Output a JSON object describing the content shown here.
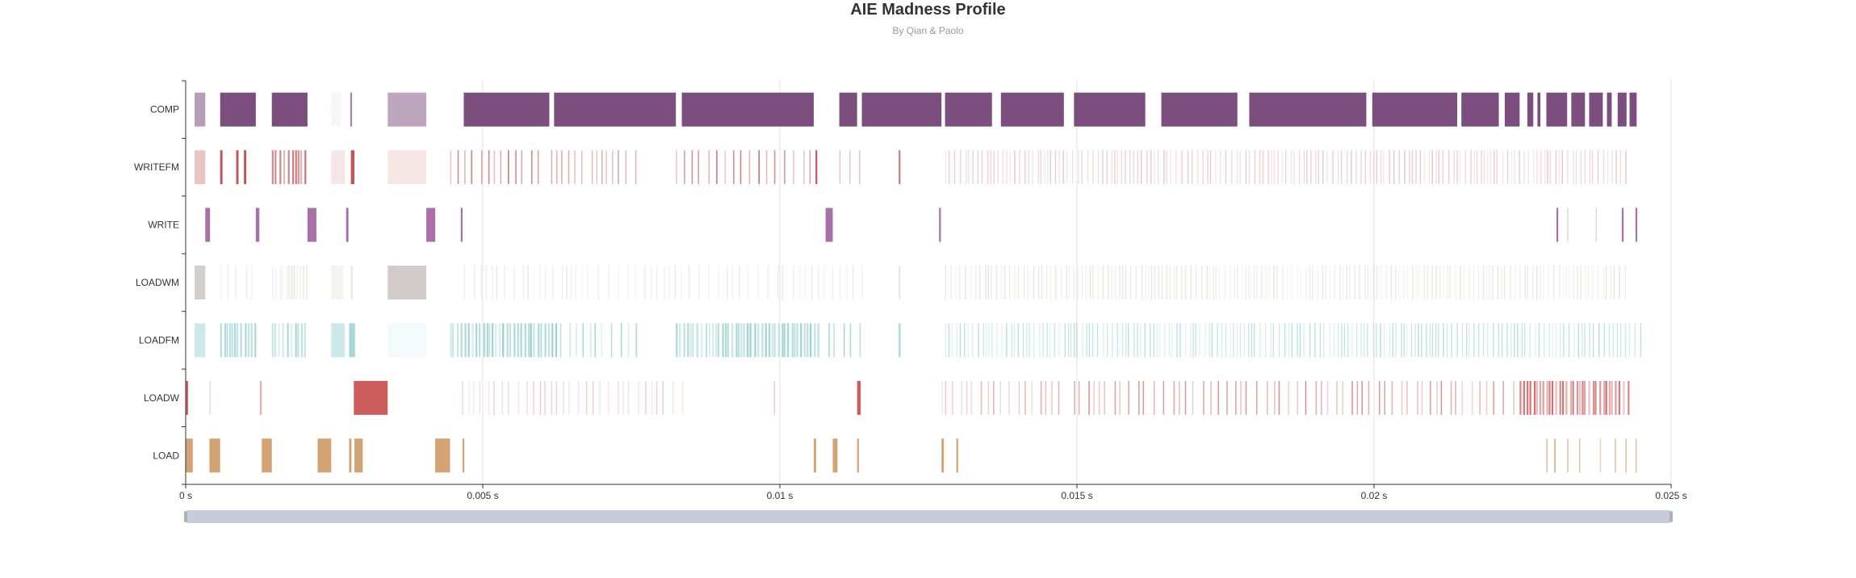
{
  "chart_data": {
    "type": "timeline",
    "title": "AIE Madness Profile",
    "subtitle": "By Qian & Paolo",
    "xlim": [
      0,
      0.025
    ],
    "x_ticks": [
      0,
      0.005,
      0.01,
      0.015,
      0.02,
      0.025
    ],
    "x_tick_labels": [
      "0 s",
      "0.005 s",
      "0.01 s",
      "0.015 s",
      "0.02 s",
      "0.025 s"
    ],
    "categories": [
      "COMP",
      "WRITEFM",
      "WRITE",
      "LOADWM",
      "LOADFM",
      "LOADW",
      "LOAD"
    ],
    "series": [
      {
        "category": "COMP",
        "color": "#7b4e7e",
        "events": [
          {
            "start": 0.00015,
            "end": 0.00033,
            "opacity": 0.55
          },
          {
            "start": 0.00058,
            "end": 0.00118,
            "opacity": 1
          },
          {
            "start": 0.00145,
            "end": 0.00205,
            "opacity": 1
          },
          {
            "start": 0.00245,
            "end": 0.00262,
            "opacity": 0.05
          },
          {
            "start": 0.00277,
            "end": 0.0028,
            "opacity": 0.7
          },
          {
            "start": 0.0034,
            "end": 0.00405,
            "opacity": 0.5
          },
          {
            "start": 0.00468,
            "end": 0.00612,
            "opacity": 1
          },
          {
            "start": 0.0062,
            "end": 0.00825,
            "opacity": 1
          },
          {
            "start": 0.00835,
            "end": 0.01057,
            "opacity": 1
          },
          {
            "start": 0.011,
            "end": 0.0113,
            "opacity": 1
          },
          {
            "start": 0.01138,
            "end": 0.01272,
            "opacity": 1
          },
          {
            "start": 0.01278,
            "end": 0.01357,
            "opacity": 1
          },
          {
            "start": 0.01372,
            "end": 0.01478,
            "opacity": 1
          },
          {
            "start": 0.01495,
            "end": 0.01615,
            "opacity": 1
          },
          {
            "start": 0.01642,
            "end": 0.0177,
            "opacity": 1
          },
          {
            "start": 0.0179,
            "end": 0.01987,
            "opacity": 1
          },
          {
            "start": 0.01997,
            "end": 0.0214,
            "opacity": 1
          },
          {
            "start": 0.02147,
            "end": 0.0221,
            "opacity": 1
          },
          {
            "start": 0.0222,
            "end": 0.02245,
            "opacity": 1
          },
          {
            "start": 0.02258,
            "end": 0.02268,
            "opacity": 1
          },
          {
            "start": 0.02275,
            "end": 0.0228,
            "opacity": 1
          },
          {
            "start": 0.0229,
            "end": 0.02325,
            "opacity": 1
          },
          {
            "start": 0.02332,
            "end": 0.02355,
            "opacity": 1
          },
          {
            "start": 0.02362,
            "end": 0.02385,
            "opacity": 1
          },
          {
            "start": 0.02392,
            "end": 0.024,
            "opacity": 1
          },
          {
            "start": 0.0241,
            "end": 0.02425,
            "opacity": 1
          },
          {
            "start": 0.0243,
            "end": 0.02442,
            "opacity": 1
          }
        ]
      },
      {
        "category": "WRITEFM",
        "color": "#c0565a",
        "events": [
          {
            "start": 0.00015,
            "end": 0.00033,
            "opacity": 0.35
          },
          {
            "start": 0.00058,
            "end": 0.00062,
            "opacity": 1
          },
          {
            "start": 0.00085,
            "end": 0.00089,
            "opacity": 1
          },
          {
            "start": 0.00098,
            "end": 0.00102,
            "opacity": 1
          },
          {
            "start": 0.00145,
            "end": 0.00205,
            "opacity": 0.9,
            "pattern": "stripes"
          },
          {
            "start": 0.00245,
            "end": 0.00268,
            "opacity": 0.15
          },
          {
            "start": 0.00278,
            "end": 0.00284,
            "opacity": 1
          },
          {
            "start": 0.0034,
            "end": 0.00405,
            "opacity": 0.15
          },
          {
            "start": 0.00445,
            "end": 0.00605,
            "opacity": 0.8,
            "pattern": "sparse"
          },
          {
            "start": 0.00615,
            "end": 0.0076,
            "opacity": 0.6,
            "pattern": "sparse"
          },
          {
            "start": 0.00825,
            "end": 0.01057,
            "opacity": 0.85,
            "pattern": "sparse"
          },
          {
            "start": 0.0106,
            "end": 0.01063,
            "opacity": 1
          },
          {
            "start": 0.011,
            "end": 0.0114,
            "opacity": 0.6,
            "pattern": "sparse"
          },
          {
            "start": 0.012,
            "end": 0.01203,
            "opacity": 0.8
          },
          {
            "start": 0.01278,
            "end": 0.0243,
            "opacity": 0.35,
            "pattern": "dense"
          }
        ]
      },
      {
        "category": "WRITE",
        "color": "#a96fa8",
        "events": [
          {
            "start": 0.00033,
            "end": 0.00041,
            "opacity": 1
          },
          {
            "start": 0.00118,
            "end": 0.00124,
            "opacity": 1
          },
          {
            "start": 0.00205,
            "end": 0.0022,
            "opacity": 1
          },
          {
            "start": 0.0027,
            "end": 0.00274,
            "opacity": 1
          },
          {
            "start": 0.00405,
            "end": 0.0042,
            "opacity": 1
          },
          {
            "start": 0.00463,
            "end": 0.00466,
            "opacity": 1
          },
          {
            "start": 0.01077,
            "end": 0.01089,
            "opacity": 1
          },
          {
            "start": 0.01268,
            "end": 0.01271,
            "opacity": 1
          },
          {
            "start": 0.02307,
            "end": 0.0231,
            "opacity": 1
          },
          {
            "start": 0.02325,
            "end": 0.02327,
            "opacity": 0.3
          },
          {
            "start": 0.02373,
            "end": 0.02375,
            "opacity": 0.3
          },
          {
            "start": 0.02417,
            "end": 0.0242,
            "opacity": 1
          },
          {
            "start": 0.0244,
            "end": 0.02443,
            "opacity": 1
          }
        ]
      },
      {
        "category": "LOADWM",
        "color": "#c9c3c0",
        "events": [
          {
            "start": 0.00015,
            "end": 0.00033,
            "opacity": 0.8
          },
          {
            "start": 0.00058,
            "end": 0.0012,
            "opacity": 0.3,
            "pattern": "sparse"
          },
          {
            "start": 0.00145,
            "end": 0.00205,
            "opacity": 0.35,
            "pattern": "stripes"
          },
          {
            "start": 0.00245,
            "end": 0.00265,
            "opacity": 0.2
          },
          {
            "start": 0.00278,
            "end": 0.00281,
            "opacity": 0.4
          },
          {
            "start": 0.0034,
            "end": 0.00405,
            "opacity": 0.85
          },
          {
            "start": 0.00468,
            "end": 0.0114,
            "opacity": 0.35,
            "pattern": "sparse"
          },
          {
            "start": 0.012,
            "end": 0.01203,
            "opacity": 0.4
          },
          {
            "start": 0.01278,
            "end": 0.0243,
            "opacity": 0.45,
            "pattern": "dense"
          }
        ]
      },
      {
        "category": "LOADFM",
        "color": "#6cbcbc",
        "events": [
          {
            "start": 0.00015,
            "end": 0.00033,
            "opacity": 0.35
          },
          {
            "start": 0.00058,
            "end": 0.0012,
            "opacity": 0.6,
            "pattern": "stripes"
          },
          {
            "start": 0.00145,
            "end": 0.00205,
            "opacity": 0.6,
            "pattern": "stripes"
          },
          {
            "start": 0.00245,
            "end": 0.00268,
            "opacity": 0.35
          },
          {
            "start": 0.00275,
            "end": 0.00285,
            "opacity": 0.6
          },
          {
            "start": 0.0034,
            "end": 0.00405,
            "opacity": 0.08
          },
          {
            "start": 0.00445,
            "end": 0.00625,
            "opacity": 0.75,
            "pattern": "stripes"
          },
          {
            "start": 0.0063,
            "end": 0.00765,
            "opacity": 0.6,
            "pattern": "sparse"
          },
          {
            "start": 0.00825,
            "end": 0.01065,
            "opacity": 0.7,
            "pattern": "stripes"
          },
          {
            "start": 0.01065,
            "end": 0.0114,
            "opacity": 0.6,
            "pattern": "sparse"
          },
          {
            "start": 0.012,
            "end": 0.01203,
            "opacity": 0.6
          },
          {
            "start": 0.01278,
            "end": 0.0245,
            "opacity": 0.5,
            "pattern": "dense"
          }
        ]
      },
      {
        "category": "LOADW",
        "color": "#cd5c5c",
        "events": [
          {
            "start": 0.0,
            "end": 4e-05,
            "opacity": 1
          },
          {
            "start": 0.0004,
            "end": 0.00042,
            "opacity": 0.25
          },
          {
            "start": 0.00125,
            "end": 0.00128,
            "opacity": 0.5
          },
          {
            "start": 0.00283,
            "end": 0.0034,
            "opacity": 1
          },
          {
            "start": 0.00465,
            "end": 0.00845,
            "opacity": 0.3,
            "pattern": "sparse"
          },
          {
            "start": 0.0099,
            "end": 0.00992,
            "opacity": 0.3
          },
          {
            "start": 0.0113,
            "end": 0.01136,
            "opacity": 1
          },
          {
            "start": 0.01272,
            "end": 0.01274,
            "opacity": 0.15
          },
          {
            "start": 0.01278,
            "end": 0.0147,
            "opacity": 0.5,
            "pattern": "sparse"
          },
          {
            "start": 0.01495,
            "end": 0.02245,
            "opacity": 0.7,
            "pattern": "sparse"
          },
          {
            "start": 0.02245,
            "end": 0.0243,
            "opacity": 0.9,
            "pattern": "stripes"
          }
        ]
      },
      {
        "category": "LOAD",
        "color": "#d4a373",
        "events": [
          {
            "start": 0.0,
            "end": 0.00012,
            "opacity": 1
          },
          {
            "start": 0.0004,
            "end": 0.00058,
            "opacity": 1
          },
          {
            "start": 0.00128,
            "end": 0.00145,
            "opacity": 1
          },
          {
            "start": 0.00222,
            "end": 0.00245,
            "opacity": 1
          },
          {
            "start": 0.00275,
            "end": 0.00279,
            "opacity": 1
          },
          {
            "start": 0.00284,
            "end": 0.00298,
            "opacity": 1
          },
          {
            "start": 0.0042,
            "end": 0.00445,
            "opacity": 1
          },
          {
            "start": 0.00466,
            "end": 0.00469,
            "opacity": 1
          },
          {
            "start": 0.01057,
            "end": 0.01061,
            "opacity": 1
          },
          {
            "start": 0.01089,
            "end": 0.01097,
            "opacity": 1
          },
          {
            "start": 0.0113,
            "end": 0.01133,
            "opacity": 1
          },
          {
            "start": 0.01272,
            "end": 0.01276,
            "opacity": 1
          },
          {
            "start": 0.01297,
            "end": 0.013,
            "opacity": 1
          },
          {
            "start": 0.0229,
            "end": 0.02292,
            "opacity": 0.7
          },
          {
            "start": 0.02303,
            "end": 0.02306,
            "opacity": 0.7
          },
          {
            "start": 0.02325,
            "end": 0.02327,
            "opacity": 0.7
          },
          {
            "start": 0.02345,
            "end": 0.02347,
            "opacity": 0.7
          },
          {
            "start": 0.0238,
            "end": 0.02382,
            "opacity": 0.5
          },
          {
            "start": 0.02405,
            "end": 0.02407,
            "opacity": 0.7
          },
          {
            "start": 0.02423,
            "end": 0.02425,
            "opacity": 0.7
          },
          {
            "start": 0.0244,
            "end": 0.02442,
            "opacity": 0.7
          }
        ]
      }
    ],
    "grid": true,
    "data_zoom_range": [
      0,
      0.025
    ]
  }
}
